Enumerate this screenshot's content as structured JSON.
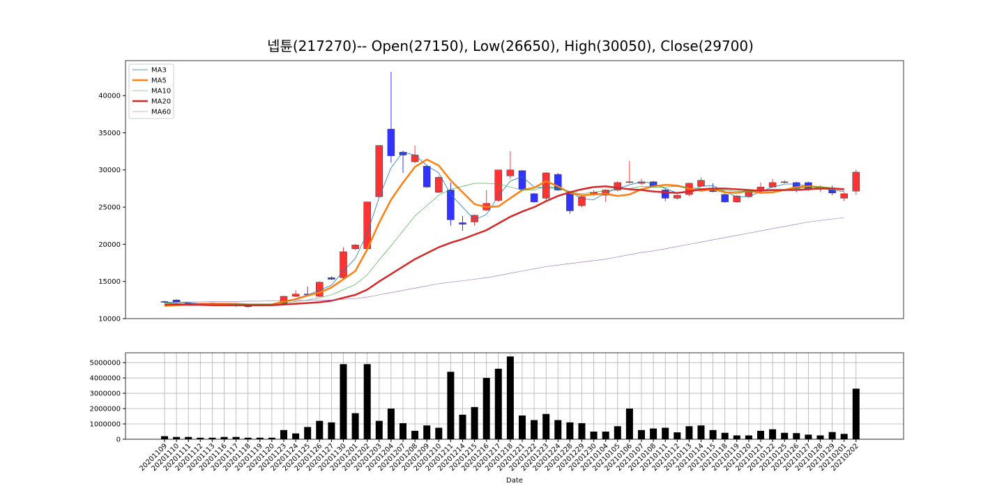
{
  "chart_data": [
    {
      "type": "candlestick",
      "title": "넵튠(217270)-- Open(27150), Low(26650), High(30050), Close(29700)",
      "open": [
        12300,
        12500,
        12100,
        12000,
        12100,
        11900,
        11900,
        11700,
        11800,
        11800,
        12050,
        13000,
        13300,
        13000,
        15500,
        15500,
        19400,
        19400,
        26400,
        35500,
        32400,
        31100,
        30500,
        27000,
        27300,
        22900,
        23000,
        24600,
        25900,
        29200,
        29900,
        26800,
        26200,
        29400,
        26800,
        25200,
        26700,
        26600,
        27300,
        28300,
        28200,
        28400,
        27300,
        26200,
        26700,
        27800,
        27400,
        26700,
        25700,
        26400,
        27200,
        27700,
        28300,
        28300,
        28300,
        27400,
        27300,
        26200,
        27150
      ],
      "high": [
        12400,
        12600,
        12200,
        12100,
        12200,
        12000,
        12000,
        11800,
        11900,
        11900,
        13100,
        13800,
        14300,
        15000,
        15700,
        19600,
        20000,
        25700,
        33300,
        43200,
        32600,
        33300,
        30700,
        29200,
        28300,
        23800,
        24000,
        27300,
        30000,
        32500,
        30000,
        26900,
        29700,
        29600,
        27000,
        26500,
        27300,
        27400,
        28500,
        31200,
        28800,
        28500,
        27500,
        26700,
        28300,
        29000,
        28200,
        26800,
        26600,
        27100,
        28300,
        28800,
        28600,
        28400,
        28400,
        27900,
        27900,
        27000,
        30050
      ],
      "low": [
        12100,
        12100,
        12000,
        11900,
        11900,
        11800,
        11600,
        11500,
        11700,
        11700,
        12000,
        12900,
        13000,
        12900,
        15200,
        15400,
        19200,
        19300,
        26300,
        31000,
        29600,
        30900,
        27600,
        26900,
        22500,
        21800,
        22500,
        24500,
        25700,
        28800,
        27200,
        25600,
        25700,
        27200,
        24100,
        25000,
        26500,
        25700,
        27100,
        28200,
        28000,
        27600,
        25800,
        26000,
        26500,
        27700,
        27000,
        25600,
        25600,
        26200,
        27000,
        27600,
        28200,
        27000,
        27200,
        27100,
        26600,
        25800,
        26650
      ],
      "close": [
        12200,
        12200,
        12050,
        11950,
        11900,
        11900,
        11800,
        11650,
        11800,
        11850,
        13000,
        13300,
        13200,
        14900,
        15300,
        19000,
        19900,
        25700,
        33300,
        31900,
        32000,
        32000,
        27700,
        29000,
        23300,
        22700,
        23900,
        25500,
        30000,
        30000,
        27400,
        25700,
        29600,
        27300,
        24500,
        26400,
        27000,
        27300,
        28300,
        28400,
        28400,
        27800,
        26200,
        26600,
        28200,
        28600,
        27100,
        25700,
        26500,
        27000,
        27700,
        28300,
        28400,
        27500,
        27500,
        27600,
        26900,
        26800,
        29700
      ],
      "up_color": "#ff3333",
      "down_color": "#3333ff",
      "series": [
        {
          "name": "MA3",
          "color": "#1f77b4",
          "values": [
            12100,
            12200,
            12150,
            12050,
            11950,
            11900,
            11850,
            11800,
            11750,
            11800,
            12200,
            12700,
            13200,
            13800,
            14500,
            16400,
            18100,
            21500,
            26300,
            30300,
            32400,
            32000,
            30600,
            29600,
            26700,
            25000,
            23300,
            24000,
            26500,
            28500,
            29100,
            27700,
            27600,
            27500,
            27100,
            26100,
            26000,
            26900,
            27500,
            28000,
            28400,
            28200,
            27500,
            26900,
            27000,
            27800,
            27900,
            27100,
            26400,
            26400,
            27100,
            27700,
            28100,
            28100,
            27800,
            27500,
            27300,
            27100,
            null
          ]
        },
        {
          "name": "MA5",
          "color": "#ff7f0e",
          "values": [
            11700,
            11800,
            11900,
            12000,
            12000,
            12000,
            12000,
            11900,
            11900,
            11900,
            12300,
            12600,
            13100,
            13500,
            14200,
            15300,
            16400,
            19300,
            22900,
            26000,
            28300,
            30400,
            31400,
            30600,
            28600,
            27000,
            25400,
            25000,
            25100,
            26200,
            27300,
            27600,
            28500,
            27800,
            26900,
            26600,
            26700,
            26800,
            26500,
            26700,
            27400,
            27800,
            28000,
            27900,
            27500,
            27200,
            27400,
            27000,
            26900,
            27200,
            26900,
            27000,
            27300,
            27700,
            27800,
            27700,
            27500,
            27400,
            null
          ]
        },
        {
          "name": "MA10",
          "color": "#2ca02c",
          "values": [
            12100,
            12050,
            12000,
            12000,
            12000,
            12000,
            11950,
            11950,
            11950,
            11950,
            12100,
            12300,
            12500,
            12800,
            13200,
            13900,
            14600,
            15900,
            17900,
            19800,
            21800,
            23800,
            25200,
            26600,
            27400,
            27800,
            28200,
            28200,
            28100,
            27700,
            27300,
            27300,
            27800,
            27600,
            27000,
            26800,
            27000,
            27200,
            27400,
            27500,
            27800,
            27700,
            27700,
            27800,
            27600,
            27500,
            27400,
            27300,
            27100,
            27100,
            27200,
            27200,
            27300,
            27500,
            27700,
            27700,
            27600,
            27500,
            null
          ]
        },
        {
          "name": "MA20",
          "color": "#d62728",
          "values": [
            11900,
            11900,
            11850,
            11850,
            11800,
            11800,
            11800,
            11800,
            11800,
            11800,
            11900,
            12000,
            12100,
            12200,
            12400,
            12800,
            13200,
            13900,
            15000,
            16000,
            17000,
            18000,
            18800,
            19600,
            20200,
            20700,
            21300,
            21900,
            22800,
            23700,
            24400,
            25000,
            25800,
            26500,
            27000,
            27400,
            27700,
            27800,
            27600,
            27400,
            27300,
            27100,
            27000,
            26900,
            27100,
            27400,
            27500,
            27500,
            27400,
            27300,
            27200,
            27300,
            27300,
            27300,
            27400,
            27500,
            27500,
            27400,
            null
          ]
        },
        {
          "name": "MA60",
          "color": "#9467bd",
          "values": [
            12200,
            12200,
            12250,
            12250,
            12300,
            12300,
            12300,
            12350,
            12350,
            12400,
            12400,
            12450,
            12450,
            12500,
            12500,
            12600,
            12700,
            12900,
            13200,
            13500,
            13800,
            14100,
            14400,
            14700,
            14900,
            15100,
            15300,
            15500,
            15800,
            16100,
            16400,
            16700,
            17000,
            17200,
            17400,
            17600,
            17800,
            18000,
            18300,
            18600,
            18900,
            19100,
            19400,
            19700,
            20000,
            20300,
            20600,
            20900,
            21200,
            21500,
            21800,
            22100,
            22400,
            22700,
            23000,
            23200,
            23400,
            23600,
            null
          ]
        }
      ],
      "ylim": [
        10000,
        44700
      ],
      "yticks": [
        10000,
        15000,
        20000,
        25000,
        30000,
        35000,
        40000
      ],
      "legend": "upper left",
      "grid": false
    },
    {
      "type": "bar",
      "x_label": "Date",
      "categories": [
        "20201109",
        "20201110",
        "20201111",
        "20201112",
        "20201113",
        "20201116",
        "20201117",
        "20201118",
        "20201119",
        "20201120",
        "20201123",
        "20201124",
        "20201125",
        "20201126",
        "20201127",
        "20201130",
        "20201201",
        "20201202",
        "20201203",
        "20201204",
        "20201207",
        "20201208",
        "20201209",
        "20201210",
        "20201211",
        "20201214",
        "20201215",
        "20201216",
        "20201217",
        "20201218",
        "20201221",
        "20201222",
        "20201223",
        "20201224",
        "20201228",
        "20201229",
        "20201230",
        "20210104",
        "20210105",
        "20210106",
        "20210107",
        "20210108",
        "20210111",
        "20210112",
        "20210113",
        "20210114",
        "20210115",
        "20210118",
        "20210119",
        "20210120",
        "20210121",
        "20210122",
        "20210125",
        "20210126",
        "20210127",
        "20210128",
        "20210129",
        "20210201",
        "20210202"
      ],
      "values": [
        200000,
        150000,
        150000,
        100000,
        100000,
        150000,
        150000,
        100000,
        100000,
        100000,
        600000,
        380000,
        800000,
        1200000,
        1100000,
        4900000,
        1700000,
        4900000,
        1200000,
        2000000,
        1050000,
        550000,
        900000,
        750000,
        4400000,
        1600000,
        2100000,
        4000000,
        4600000,
        5400000,
        1550000,
        1250000,
        1650000,
        1250000,
        1100000,
        1050000,
        500000,
        500000,
        850000,
        2000000,
        600000,
        700000,
        750000,
        450000,
        850000,
        900000,
        600000,
        420000,
        250000,
        250000,
        550000,
        650000,
        420000,
        400000,
        300000,
        250000,
        470000,
        350000,
        3300000
      ],
      "color": "#000000",
      "ylim": [
        0,
        5640000
      ],
      "yticks": [
        0,
        1000000,
        2000000,
        3000000,
        4000000,
        5000000
      ],
      "grid": true
    }
  ]
}
